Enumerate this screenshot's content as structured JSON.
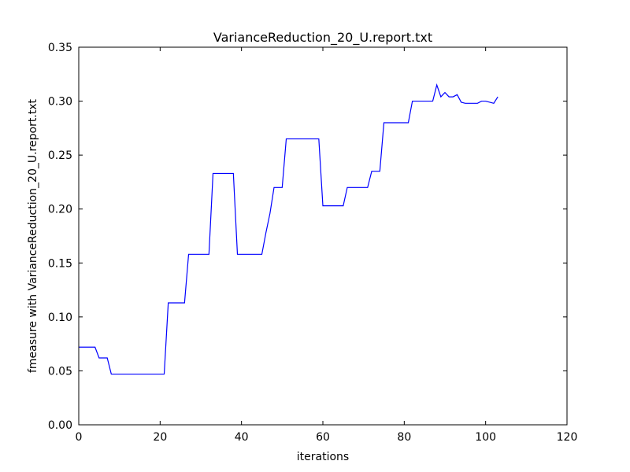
{
  "chart_data": {
    "type": "line",
    "title": "VarianceReduction_20_U.report.txt",
    "xlabel": "iterations",
    "ylabel": "fmeasure with VarianceReduction_20_U.report.txt",
    "xlim": [
      0,
      120
    ],
    "ylim": [
      0,
      0.35
    ],
    "xticks": [
      0,
      20,
      40,
      60,
      80,
      100,
      120
    ],
    "xtick_labels": [
      "0",
      "20",
      "40",
      "60",
      "80",
      "100",
      "120"
    ],
    "yticks": [
      0,
      0.05,
      0.1,
      0.15,
      0.2,
      0.25,
      0.3,
      0.35
    ],
    "ytick_labels": [
      "0.00",
      "0.05",
      "0.10",
      "0.15",
      "0.20",
      "0.25",
      "0.30",
      "0.35"
    ],
    "grid": false,
    "line_color": "#0000ff",
    "series": [
      {
        "x": [
          0,
          4,
          5,
          7,
          8,
          21,
          22,
          26,
          27,
          32,
          33,
          38,
          39,
          45,
          46,
          47,
          48,
          50,
          51,
          59,
          60,
          65,
          66,
          71,
          72,
          74,
          75,
          81,
          82,
          87,
          88,
          89,
          90,
          91,
          92,
          93,
          94,
          95,
          96,
          97,
          98,
          99,
          100,
          101,
          102,
          103
        ],
        "y": [
          0.072,
          0.072,
          0.062,
          0.062,
          0.047,
          0.047,
          0.113,
          0.113,
          0.158,
          0.158,
          0.233,
          0.233,
          0.158,
          0.158,
          0.178,
          0.196,
          0.22,
          0.22,
          0.265,
          0.265,
          0.203,
          0.203,
          0.22,
          0.22,
          0.235,
          0.235,
          0.28,
          0.28,
          0.3,
          0.3,
          0.315,
          0.304,
          0.308,
          0.304,
          0.304,
          0.306,
          0.299,
          0.298,
          0.298,
          0.298,
          0.298,
          0.3,
          0.3,
          0.299,
          0.298,
          0.304
        ]
      }
    ]
  }
}
